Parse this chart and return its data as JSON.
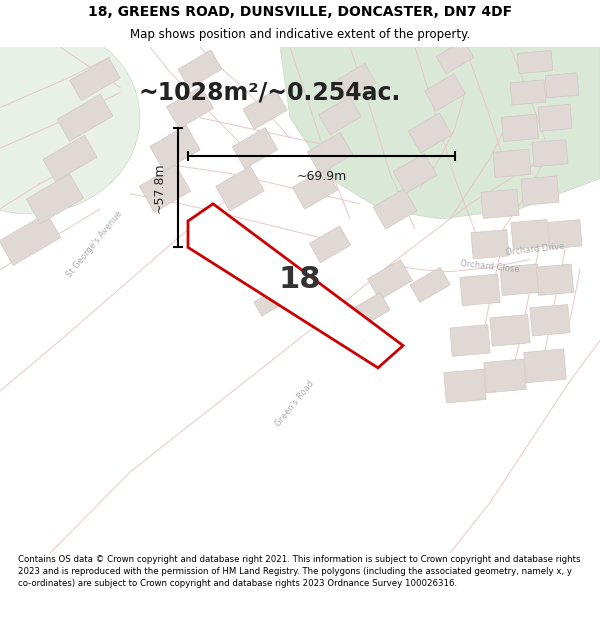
{
  "title_line1": "18, GREENS ROAD, DUNSVILLE, DONCASTER, DN7 4DF",
  "title_line2": "Map shows position and indicative extent of the property.",
  "footer_text": "Contains OS data © Crown copyright and database right 2021. This information is subject to Crown copyright and database rights 2023 and is reproduced with the permission of HM Land Registry. The polygons (including the associated geometry, namely x, y co-ordinates) are subject to Crown copyright and database rights 2023 Ordnance Survey 100026316.",
  "area_label": "~1028m²/~0.254ac.",
  "width_label": "~69.9m",
  "height_label": "~57.8m",
  "property_number": "18",
  "map_bg": "#f2eeea",
  "green_color": "#dae8d8",
  "green_color2": "#e8f0e8",
  "road_color": "#e8c8c8",
  "building_fill": "#e0d8d4",
  "building_edge": "#d4c8c4",
  "property_color": "#cc0000",
  "text_dark": "#222222",
  "text_gray": "#aaaaaa",
  "title_fs": 10,
  "subtitle_fs": 8.5,
  "footer_fs": 6.2,
  "area_fs": 17,
  "dim_label_fs": 9,
  "num_fs": 22
}
